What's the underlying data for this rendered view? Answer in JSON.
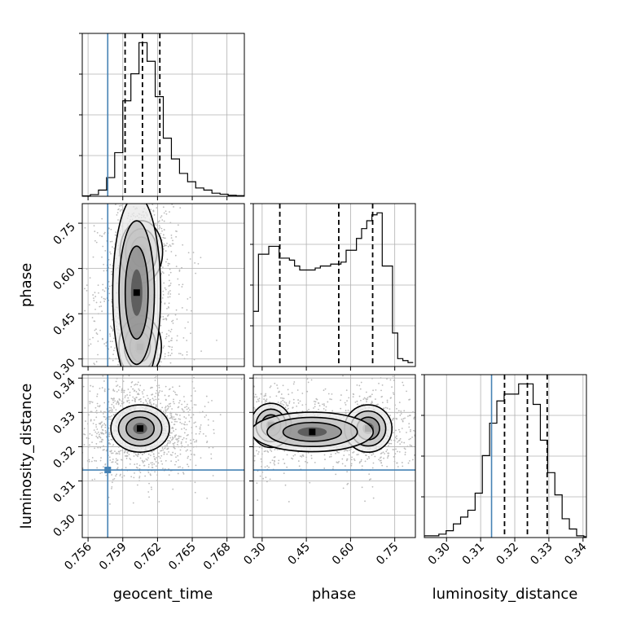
{
  "chart_data": {
    "type": "corner",
    "parameters": [
      "geocent_time",
      "phase",
      "luminosity_distance"
    ],
    "truths": {
      "geocent_time": 0.7577,
      "luminosity_distance": 0.3132
    },
    "colors": {
      "truth": "#4682b4",
      "hist": "#000000",
      "grid": "#b0b0b0",
      "contour": "#000000"
    },
    "grid": true,
    "panels": {
      "geocent_time_hist": {
        "xlim": [
          0.7555,
          0.7695
        ],
        "quantiles": [
          0.7592,
          0.7607,
          0.7622
        ],
        "bins": [
          0.7555,
          0.7562,
          0.7569,
          0.7576,
          0.7583,
          0.759,
          0.7597,
          0.7604,
          0.7611,
          0.7618,
          0.7625,
          0.7632,
          0.7639,
          0.7646,
          0.7653,
          0.766,
          0.7667,
          0.7674,
          0.7681,
          0.7688,
          0.7695
        ],
        "counts": [
          0.2,
          0.8,
          3,
          9,
          21,
          46,
          59,
          74,
          65,
          48,
          28,
          18,
          11,
          7,
          4,
          3,
          1.5,
          1,
          0.5,
          0.3
        ]
      },
      "phase_hist": {
        "xlim": [
          0.27,
          0.82
        ],
        "quantiles": [
          0.36,
          0.56,
          0.675
        ],
        "bins": [
          0.27,
          0.2875,
          0.305,
          0.3225,
          0.34,
          0.3575,
          0.375,
          0.3925,
          0.41,
          0.4275,
          0.445,
          0.4625,
          0.48,
          0.4975,
          0.515,
          0.5325,
          0.55,
          0.5675,
          0.585,
          0.6025,
          0.62,
          0.6375,
          0.655,
          0.6725,
          0.69,
          0.7075,
          0.725,
          0.7425,
          0.76,
          0.7775,
          0.795,
          0.8125
        ],
        "counts": [
          0.28,
          0.57,
          0.57,
          0.61,
          0.61,
          0.55,
          0.55,
          0.54,
          0.51,
          0.49,
          0.49,
          0.49,
          0.5,
          0.51,
          0.51,
          0.52,
          0.52,
          0.53,
          0.59,
          0.59,
          0.65,
          0.7,
          0.74,
          0.77,
          0.78,
          0.51,
          0.51,
          0.17,
          0.04,
          0.03,
          0.02
        ]
      },
      "luminosity_distance_hist": {
        "xlim": [
          0.2935,
          0.341
        ],
        "quantiles": [
          0.317,
          0.3237,
          0.3295
        ],
        "bins": [
          0.2935,
          0.29563,
          0.29775,
          0.29988,
          0.302,
          0.30413,
          0.30625,
          0.30838,
          0.3105,
          0.31263,
          0.31475,
          0.31688,
          0.319,
          0.32113,
          0.32325,
          0.32538,
          0.3275,
          0.32963,
          0.33175,
          0.33388,
          0.336,
          0.33813,
          0.34025,
          0.341
        ],
        "counts": [
          0.01,
          0.01,
          0.02,
          0.04,
          0.08,
          0.12,
          0.16,
          0.26,
          0.48,
          0.67,
          0.8,
          0.84,
          0.84,
          0.9,
          0.9,
          0.78,
          0.57,
          0.38,
          0.25,
          0.11,
          0.05,
          0.01,
          0.005
        ]
      },
      "phase_vs_geocent_time": {
        "xlim": [
          0.7555,
          0.7695
        ],
        "ylim": [
          0.275,
          0.815
        ],
        "modes": [
          [
            0.7606,
            0.655,
            0.0008,
            0.045
          ],
          [
            0.7605,
            0.34,
            0.0008,
            0.045
          ],
          [
            0.7602,
            0.52,
            0.0009,
            0.14
          ]
        ]
      },
      "luminosity_distance_vs_geocent_time": {
        "xlim": [
          0.7555,
          0.7695
        ],
        "ylim": [
          0.2935,
          0.341
        ],
        "modes": [
          [
            0.7605,
            0.3253,
            0.0011,
            0.003
          ]
        ]
      },
      "luminosity_distance_vs_phase": {
        "xlim": [
          0.27,
          0.82
        ],
        "ylim": [
          0.2935,
          0.341
        ],
        "modes": [
          [
            0.66,
            0.3253,
            0.035,
            0.003
          ],
          [
            0.33,
            0.3262,
            0.03,
            0.0028
          ],
          [
            0.47,
            0.3243,
            0.09,
            0.0025
          ]
        ]
      }
    },
    "ticks": {
      "geocent_time": [
        0.756,
        0.759,
        0.762,
        0.765,
        0.768
      ],
      "phase": [
        0.3,
        0.45,
        0.6,
        0.75
      ],
      "luminosity_distance": [
        0.3,
        0.31,
        0.32,
        0.33,
        0.34
      ]
    },
    "tick_labels": {
      "geocent_time": [
        "0.756",
        "0.759",
        "0.762",
        "0.765",
        "0.768"
      ],
      "phase": [
        "0.30",
        "0.45",
        "0.60",
        "0.75"
      ],
      "luminosity_distance": [
        "0.30",
        "0.31",
        "0.32",
        "0.33",
        "0.34"
      ]
    },
    "labels": {
      "geocent_time": "geocent_time",
      "phase": "phase",
      "luminosity_distance": "luminosity_distance"
    }
  }
}
